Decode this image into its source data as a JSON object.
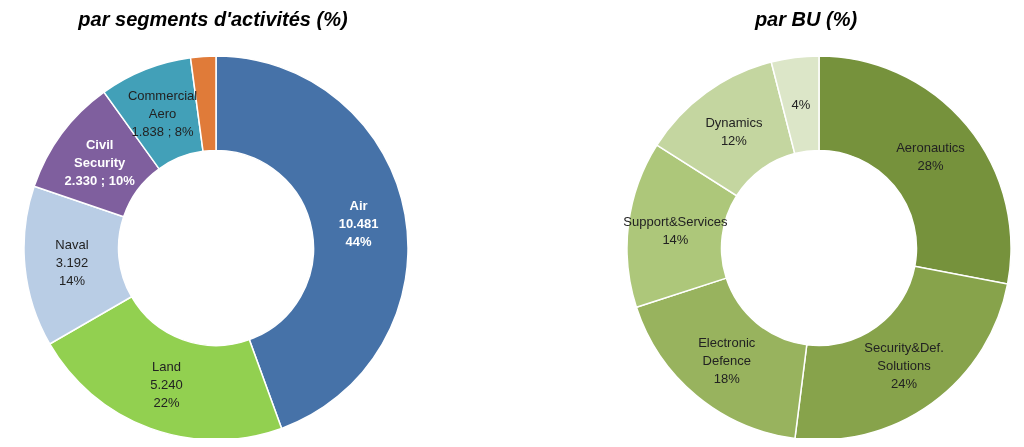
{
  "chart_data": [
    {
      "type": "donut",
      "title": "par segments d'activités (%)",
      "categories": [
        "Air",
        "Land",
        "Naval",
        "Civil Security",
        "Commercial Aero",
        null
      ],
      "values": [
        10481,
        5240,
        3192,
        2330,
        1838,
        500
      ],
      "value_labels": [
        "10.481\n44%",
        "5.240\n22%",
        "3.192\n14%",
        "2.330 ; 10%",
        "1.838 ; 8%",
        null
      ],
      "colors": [
        "#4672a8",
        "#92d050",
        "#b9cde5",
        "#7f5f9e",
        "#42a0b8",
        "#e07b39"
      ],
      "legend": false
    },
    {
      "type": "donut",
      "title": "par BU  (%)",
      "categories": [
        "Aeronautics",
        "Security&Def. Solutions",
        "Electronic Defence",
        "Support&Services",
        "Dynamics",
        null
      ],
      "values": [
        28,
        24,
        18,
        14,
        12,
        4
      ],
      "value_labels": [
        "28%",
        "24%",
        "18%",
        "14%",
        "12%",
        "4%"
      ],
      "colors": [
        "#76923c",
        "#87a34b",
        "#98b35e",
        "#adc77a",
        "#c4d6a0",
        "#dce6c8"
      ],
      "legend": false
    }
  ]
}
